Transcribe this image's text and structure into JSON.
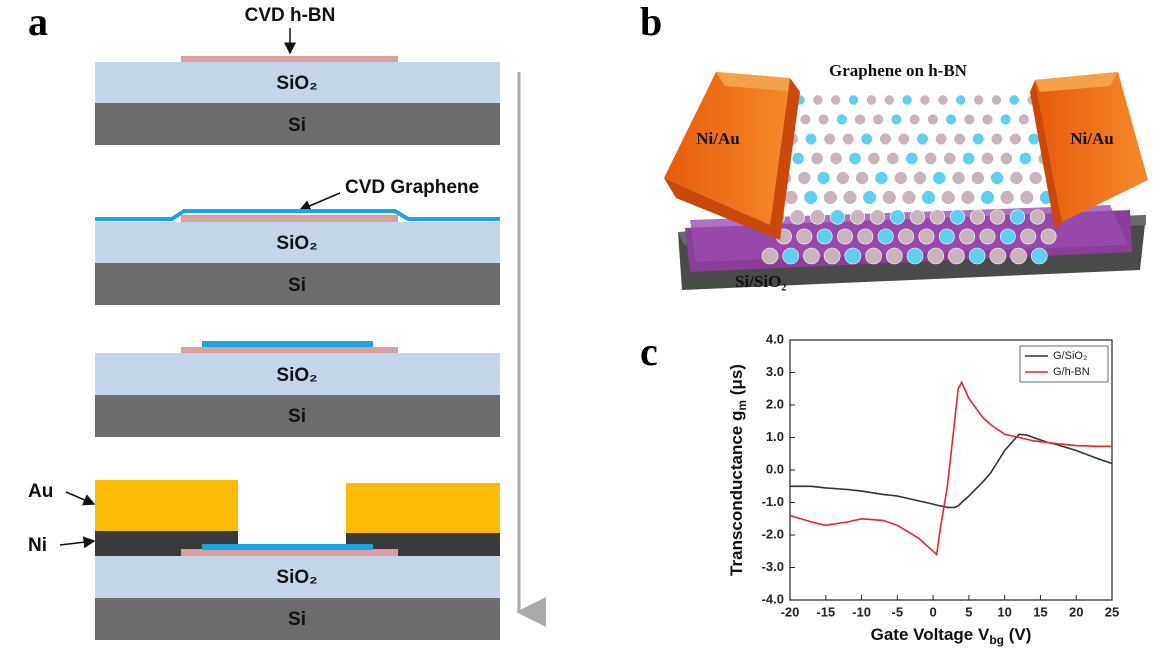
{
  "panel_a": {
    "label": "a",
    "hbn_label": "CVD h-BN",
    "graphene_label": "CVD Graphene",
    "layer_sio2": "SiO₂",
    "layer_si": "Si",
    "au_label": "Au",
    "ni_label": "Ni"
  },
  "panel_b": {
    "label": "b",
    "title": "Graphene on h-BN",
    "contact_left": "Ni/Au",
    "contact_right": "Ni/Au",
    "substrate": "Si/SiO₂"
  },
  "panel_c": {
    "label": "c"
  },
  "chart_data": {
    "type": "line",
    "xlabel": {
      "text": "Gate Voltage V",
      "sub": "bg",
      "after": " (V)"
    },
    "ylabel": {
      "text": "Transconductance g",
      "sub": "m",
      "after": " (μs)"
    },
    "x": [
      -20,
      -17,
      -15,
      -12,
      -10,
      -7,
      -5,
      -2,
      0,
      0.5,
      1,
      2,
      3,
      3.5,
      4,
      5,
      7,
      8,
      10,
      12,
      13,
      14,
      16,
      17,
      20,
      23,
      25
    ],
    "series": [
      {
        "name": "G/SiO₂",
        "color": "#333333",
        "values": [
          -0.5,
          -0.5,
          -0.55,
          -0.6,
          -0.65,
          -0.75,
          -0.8,
          -0.95,
          -1.05,
          -1.08,
          -1.1,
          -1.15,
          -1.15,
          -1.1,
          -1.0,
          -0.8,
          -0.35,
          -0.1,
          0.6,
          1.1,
          1.08,
          1.0,
          0.85,
          0.8,
          0.6,
          0.35,
          0.2
        ]
      },
      {
        "name": "G/h-BN",
        "color": "#e8262b",
        "values": [
          -1.4,
          -1.6,
          -1.7,
          -1.6,
          -1.5,
          -1.55,
          -1.7,
          -2.1,
          -2.5,
          -2.6,
          -1.8,
          -0.5,
          1.5,
          2.5,
          2.7,
          2.2,
          1.6,
          1.4,
          1.1,
          1.0,
          0.95,
          0.9,
          0.85,
          0.82,
          0.75,
          0.73,
          0.73
        ]
      }
    ],
    "xlim": [
      -20,
      25
    ],
    "xticks": [
      -20,
      -15,
      -10,
      -5,
      0,
      5,
      10,
      15,
      20,
      25
    ],
    "ylim": [
      -4,
      4
    ],
    "yticks": [
      {
        "value": 4,
        "label": "4.0"
      },
      {
        "value": 3,
        "label": "3.0"
      },
      {
        "value": 2,
        "label": "2.0"
      },
      {
        "value": 1,
        "label": "1.0"
      },
      {
        "value": 0,
        "label": "0.0"
      },
      {
        "value": -1,
        "label": "-1.0"
      },
      {
        "value": -2,
        "label": "-2.0"
      },
      {
        "value": -3,
        "label": "-3.0"
      },
      {
        "value": -4,
        "label": "-4.0"
      }
    ],
    "legend": "upper right",
    "grid": false
  }
}
